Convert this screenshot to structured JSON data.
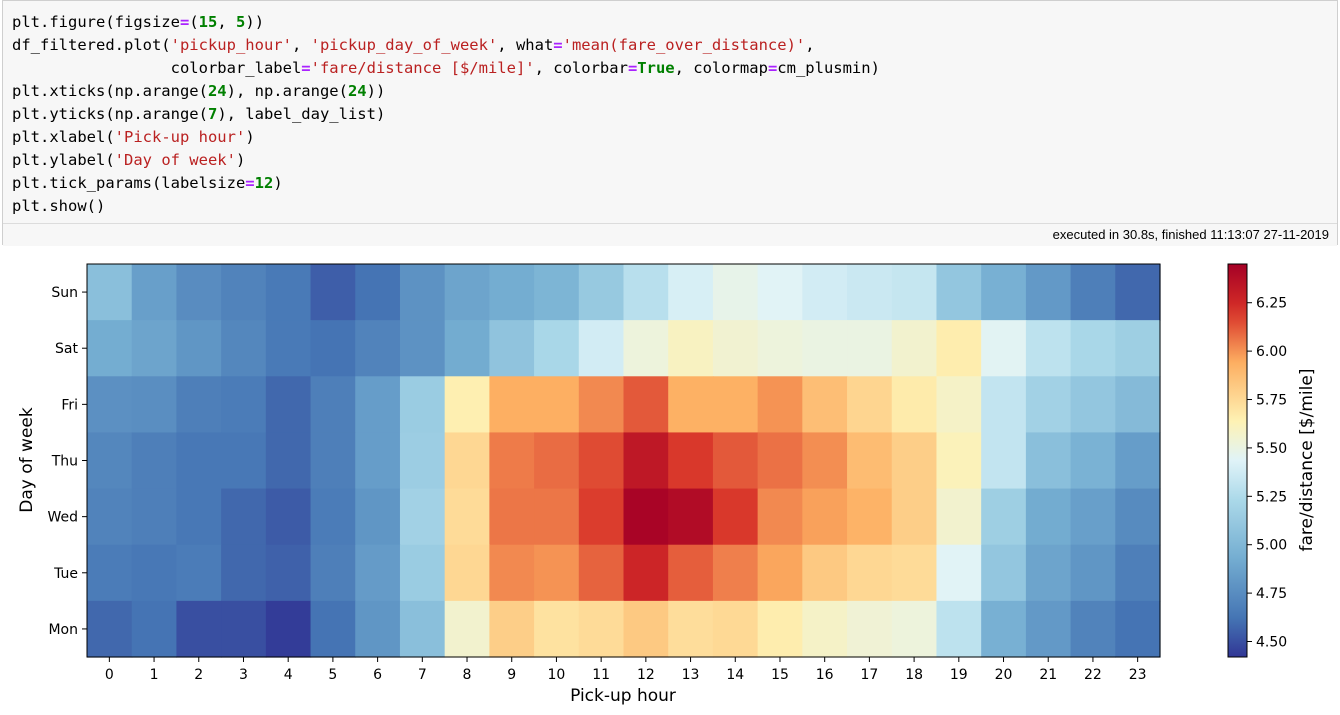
{
  "notebook": {
    "code_lines": [
      [
        [
          "plt.figure(figsize",
          "t"
        ],
        [
          "=",
          "op"
        ],
        [
          "(",
          "t"
        ],
        [
          "15",
          "num"
        ],
        [
          ", ",
          "t"
        ],
        [
          "5",
          "num"
        ],
        [
          "))",
          "t"
        ]
      ],
      [
        [
          "df_filtered.plot(",
          "t"
        ],
        [
          "'pickup_hour'",
          "str"
        ],
        [
          ", ",
          "t"
        ],
        [
          "'pickup_day_of_week'",
          "str"
        ],
        [
          ", what",
          "t"
        ],
        [
          "=",
          "op"
        ],
        [
          "'mean(fare_over_distance)'",
          "str"
        ],
        [
          ",",
          "t"
        ]
      ],
      [
        [
          "                 colorbar_label",
          "t"
        ],
        [
          "=",
          "op"
        ],
        [
          "'fare/distance [$/mile]'",
          "str"
        ],
        [
          ", colorbar",
          "t"
        ],
        [
          "=",
          "op"
        ],
        [
          "True",
          "kw"
        ],
        [
          ", colormap",
          "t"
        ],
        [
          "=",
          "op"
        ],
        [
          "cm_plusmin)",
          "t"
        ]
      ],
      [
        [
          "plt.xticks(np.arange(",
          "t"
        ],
        [
          "24",
          "num"
        ],
        [
          "), np.arange(",
          "t"
        ],
        [
          "24",
          "num"
        ],
        [
          "))",
          "t"
        ]
      ],
      [
        [
          "plt.yticks(np.arange(",
          "t"
        ],
        [
          "7",
          "num"
        ],
        [
          "), label_day_list)",
          "t"
        ]
      ],
      [
        [
          "plt.xlabel(",
          "t"
        ],
        [
          "'Pick-up hour'",
          "str"
        ],
        [
          ")",
          "t"
        ]
      ],
      [
        [
          "plt.ylabel(",
          "t"
        ],
        [
          "'Day of week'",
          "str"
        ],
        [
          ")",
          "t"
        ]
      ],
      [
        [
          "plt.tick_params(labelsize",
          "t"
        ],
        [
          "=",
          "op"
        ],
        [
          "12",
          "num"
        ],
        [
          ")",
          "t"
        ]
      ],
      [
        [
          "plt.show()",
          "t"
        ]
      ]
    ],
    "execution_status": "executed in 30.8s, finished 11:13:07 27-11-2019"
  },
  "chart_data": {
    "type": "heatmap",
    "xlabel": "Pick-up hour",
    "ylabel": "Day of week",
    "colorbar_label": "fare/distance [$/mile]",
    "x_ticks": [
      "0",
      "1",
      "2",
      "3",
      "4",
      "5",
      "6",
      "7",
      "8",
      "9",
      "10",
      "11",
      "12",
      "13",
      "14",
      "15",
      "16",
      "17",
      "18",
      "19",
      "20",
      "21",
      "22",
      "23"
    ],
    "y_ticks_top_to_bottom": [
      "Sun",
      "Sat",
      "Fri",
      "Thu",
      "Wed",
      "Tue",
      "Mon"
    ],
    "colorbar_range": [
      4.42,
      6.45
    ],
    "colorbar_ticks": [
      "4.50",
      "4.75",
      "5.00",
      "5.25",
      "5.50",
      "5.75",
      "6.00",
      "6.25"
    ],
    "rows": [
      {
        "day": "Sun",
        "values": [
          5.05,
          4.85,
          4.75,
          4.7,
          4.65,
          4.55,
          4.62,
          4.78,
          4.88,
          4.93,
          4.98,
          5.12,
          5.28,
          5.4,
          5.48,
          5.44,
          5.38,
          5.35,
          5.33,
          5.1,
          4.95,
          4.82,
          4.68,
          4.58
        ]
      },
      {
        "day": "Sat",
        "values": [
          4.93,
          4.88,
          4.8,
          4.72,
          4.65,
          4.62,
          4.7,
          4.78,
          4.92,
          5.08,
          5.22,
          5.38,
          5.52,
          5.6,
          5.55,
          5.52,
          5.5,
          5.5,
          5.56,
          5.66,
          5.45,
          5.3,
          5.22,
          5.16
        ]
      },
      {
        "day": "Fri",
        "values": [
          4.77,
          4.76,
          4.68,
          4.66,
          4.58,
          4.68,
          4.84,
          5.14,
          5.65,
          5.94,
          5.94,
          6.02,
          6.12,
          5.93,
          5.93,
          6.0,
          5.87,
          5.77,
          5.67,
          5.58,
          5.32,
          5.18,
          5.1,
          5.02
        ]
      },
      {
        "day": "Thu",
        "values": [
          4.72,
          4.68,
          4.64,
          4.64,
          4.58,
          4.68,
          4.84,
          5.15,
          5.76,
          6.05,
          6.08,
          6.15,
          6.33,
          6.19,
          6.12,
          6.07,
          6.01,
          5.88,
          5.8,
          5.62,
          5.32,
          5.05,
          4.96,
          4.84
        ]
      },
      {
        "day": "Wed",
        "values": [
          4.7,
          4.68,
          4.64,
          4.58,
          4.54,
          4.66,
          4.8,
          5.18,
          5.74,
          6.06,
          6.06,
          6.18,
          6.43,
          6.39,
          6.19,
          6.02,
          5.97,
          5.92,
          5.8,
          5.56,
          5.16,
          4.92,
          4.85,
          4.74
        ]
      },
      {
        "day": "Tue",
        "values": [
          4.66,
          4.64,
          4.66,
          4.58,
          4.56,
          4.68,
          4.83,
          5.14,
          5.76,
          6.02,
          6.0,
          6.1,
          6.26,
          6.11,
          6.04,
          5.96,
          5.82,
          5.76,
          5.74,
          5.44,
          5.1,
          4.88,
          4.8,
          4.68
        ]
      },
      {
        "day": "Mon",
        "values": [
          4.58,
          4.62,
          4.5,
          4.5,
          4.44,
          4.62,
          4.8,
          5.05,
          5.56,
          5.8,
          5.71,
          5.74,
          5.82,
          5.73,
          5.75,
          5.66,
          5.58,
          5.54,
          5.52,
          5.3,
          4.95,
          4.82,
          4.7,
          4.62
        ]
      }
    ]
  }
}
